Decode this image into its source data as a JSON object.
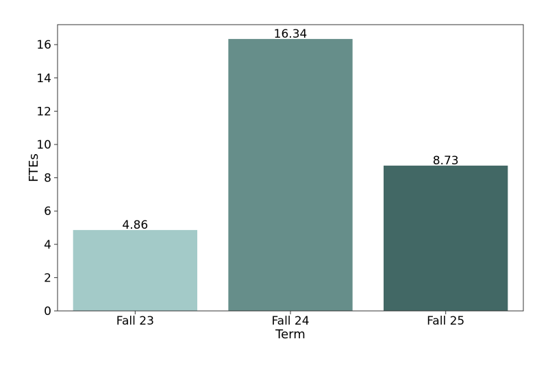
{
  "chart_data": {
    "type": "bar",
    "categories": [
      "Fall 23",
      "Fall 24",
      "Fall 25"
    ],
    "values": [
      4.86,
      16.34,
      8.73
    ],
    "data_labels": [
      "4.86",
      "16.34",
      "8.73"
    ],
    "bar_colors": [
      "#a3cac8",
      "#668e8a",
      "#426865"
    ],
    "title": "",
    "xlabel": "Term",
    "ylabel": "FTEs",
    "ylim": [
      0,
      17.2
    ],
    "yticks": [
      0,
      2,
      4,
      6,
      8,
      10,
      12,
      14,
      16
    ],
    "grid": false,
    "legend": false
  }
}
